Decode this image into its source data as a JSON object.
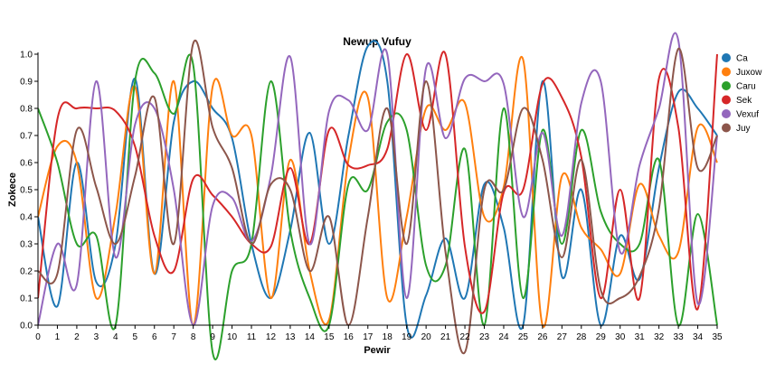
{
  "chart_data": {
    "type": "line",
    "title": "Newup Vufuy",
    "xlabel": "Pewir",
    "ylabel": "Zokece",
    "xlim": [
      0,
      35
    ],
    "ylim": [
      0,
      1.0
    ],
    "x_ticks": [
      "0",
      "1",
      "2",
      "3",
      "4",
      "5",
      "6",
      "7",
      "8",
      "9",
      "10",
      "11",
      "12",
      "13",
      "14",
      "15",
      "16",
      "17",
      "18",
      "19",
      "20",
      "21",
      "22",
      "23",
      "24",
      "25",
      "26",
      "27",
      "28",
      "29",
      "30",
      "31",
      "32",
      "33",
      "34",
      "35"
    ],
    "y_ticks": [
      "0.0",
      "0.1",
      "0.2",
      "0.3",
      "0.4",
      "0.5",
      "0.6",
      "0.7",
      "0.8",
      "0.9",
      "1.0"
    ],
    "grid": false,
    "legend_position": "top-right",
    "x": [
      0,
      1,
      2,
      3,
      4,
      5,
      6,
      7,
      8,
      9,
      10,
      11,
      12,
      13,
      14,
      15,
      16,
      17,
      18,
      19,
      20,
      21,
      22,
      23,
      24,
      25,
      26,
      27,
      28,
      29,
      30,
      31,
      32,
      33,
      34,
      35
    ],
    "series": [
      {
        "name": "Ca",
        "color": "#1f77b4",
        "values": [
          0.4,
          0.07,
          0.6,
          0.16,
          0.3,
          0.91,
          0.19,
          0.75,
          0.9,
          0.8,
          0.69,
          0.3,
          0.1,
          0.35,
          0.71,
          0.3,
          0.7,
          1.03,
          0.9,
          0.0,
          0.11,
          0.32,
          0.1,
          0.52,
          0.36,
          0.0,
          0.9,
          0.18,
          0.5,
          0.0,
          0.33,
          0.17,
          0.58,
          0.86,
          0.8,
          0.7
        ]
      },
      {
        "name": "Juxow",
        "color": "#ff7f0e",
        "values": [
          0.4,
          0.66,
          0.6,
          0.1,
          0.41,
          0.88,
          0.19,
          0.9,
          0.0,
          0.88,
          0.7,
          0.7,
          0.1,
          0.61,
          0.2,
          0.02,
          0.61,
          0.84,
          0.1,
          0.4,
          0.8,
          0.72,
          0.82,
          0.4,
          0.51,
          0.98,
          0.0,
          0.55,
          0.36,
          0.28,
          0.19,
          0.52,
          0.33,
          0.27,
          0.73,
          0.6
        ]
      },
      {
        "name": "Caru",
        "color": "#2ca02c",
        "values": [
          0.8,
          0.6,
          0.3,
          0.33,
          0.0,
          0.9,
          0.93,
          0.78,
          0.96,
          -0.1,
          0.2,
          0.3,
          0.9,
          0.35,
          0.1,
          0.0,
          0.52,
          0.5,
          0.75,
          0.72,
          0.22,
          0.22,
          0.65,
          0.0,
          0.8,
          0.1,
          0.72,
          0.3,
          0.72,
          0.42,
          0.3,
          0.3,
          0.61,
          0.0,
          0.41,
          0.0
        ]
      },
      {
        "name": "Sek",
        "color": "#d62728",
        "values": [
          0.1,
          0.76,
          0.8,
          0.8,
          0.79,
          0.66,
          0.33,
          0.2,
          0.54,
          0.48,
          0.4,
          0.3,
          0.29,
          0.58,
          0.3,
          0.72,
          0.59,
          0.59,
          0.65,
          1.0,
          0.72,
          1.0,
          0.29,
          0.05,
          0.49,
          0.5,
          0.89,
          0.84,
          0.62,
          0.1,
          0.5,
          0.1,
          0.91,
          0.73,
          0.06,
          1.0
        ]
      },
      {
        "name": "Vexuf",
        "color": "#9467bd",
        "values": [
          0.0,
          0.3,
          0.15,
          0.9,
          0.25,
          0.74,
          0.8,
          0.5,
          0.0,
          0.44,
          0.47,
          0.31,
          0.55,
          0.99,
          0.3,
          0.79,
          0.83,
          0.72,
          1.0,
          0.1,
          0.95,
          0.69,
          0.91,
          0.9,
          0.89,
          0.4,
          0.71,
          0.33,
          0.82,
          0.9,
          0.27,
          0.59,
          0.8,
          1.05,
          0.08,
          0.7
        ]
      },
      {
        "name": "Juy",
        "color": "#8c564b",
        "values": [
          0.2,
          0.19,
          0.72,
          0.51,
          0.3,
          0.55,
          0.84,
          0.3,
          1.04,
          0.73,
          0.58,
          0.3,
          0.52,
          0.5,
          0.2,
          0.4,
          0.0,
          0.4,
          0.8,
          0.3,
          0.9,
          0.27,
          -0.1,
          0.5,
          0.5,
          0.8,
          0.61,
          0.25,
          0.61,
          0.13,
          0.1,
          0.18,
          0.43,
          1.02,
          0.58,
          0.7
        ]
      }
    ]
  }
}
